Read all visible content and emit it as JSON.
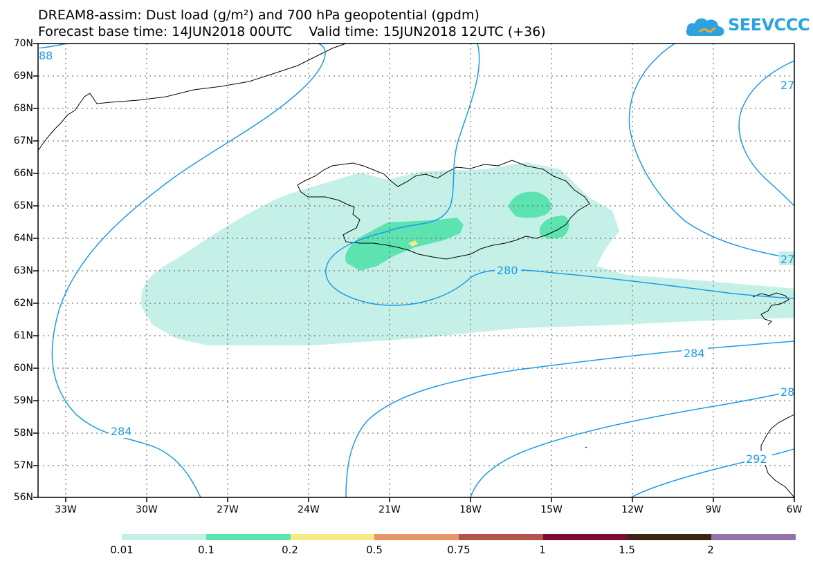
{
  "header": {
    "title_line1": "DREAM8-assim: Dust load (g/m²) and 700 hPa geopotential (gpdm)",
    "title_line2": "Forecast base time: 14JUN2018 00UTC    Valid time: 15JUN2018 12UTC (+36)",
    "logo_text": "SEEVCCC",
    "logo_icon": "cloud-icon"
  },
  "map": {
    "lat_labels": [
      "70N",
      "69N",
      "68N",
      "67N",
      "66N",
      "65N",
      "64N",
      "63N",
      "62N",
      "61N",
      "60N",
      "59N",
      "58N",
      "57N",
      "56N"
    ],
    "lon_labels": [
      "33W",
      "30W",
      "27W",
      "24W",
      "21W",
      "18W",
      "15W",
      "12W",
      "9W",
      "6W"
    ],
    "contour_labels": {
      "c288_left": "88",
      "c276_right": "27",
      "c276_right2": "27",
      "c280": "280",
      "c284_right": "284",
      "c284_left": "284",
      "c288_right": "28",
      "c292_right": "292"
    },
    "colors": {
      "contour": "#1a9be6",
      "dust_001": "#c5f0e8",
      "dust_01": "#5ce3b0",
      "dust_02": "#f5ea84",
      "coast": "#000000"
    }
  },
  "colorbar": {
    "labels": [
      "0.01",
      "0.1",
      "0.2",
      "0.5",
      "0.75",
      "1",
      "1.5",
      "2"
    ],
    "colors": [
      "#c5f0e8",
      "#5ce3b0",
      "#f5ea84",
      "#e8946c",
      "#b2534e",
      "#7b0e2e",
      "#3b2614",
      "#9572aa"
    ]
  }
}
